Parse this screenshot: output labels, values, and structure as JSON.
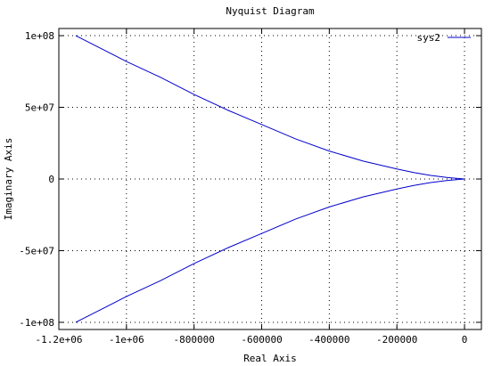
{
  "chart_data": {
    "type": "line",
    "title": "Nyquist Diagram",
    "xlabel": "Real Axis",
    "ylabel": "Imaginary Axis",
    "xlim": [
      -1200000,
      50000
    ],
    "ylim": [
      -105000000,
      105000000
    ],
    "grid": true,
    "legend_position": "top-right",
    "x_ticks": [
      {
        "value": -1200000,
        "label": "-1.2e+06"
      },
      {
        "value": -1000000,
        "label": "-1e+06"
      },
      {
        "value": -800000,
        "label": "-800000"
      },
      {
        "value": -600000,
        "label": "-600000"
      },
      {
        "value": -400000,
        "label": "-400000"
      },
      {
        "value": -200000,
        "label": "-200000"
      },
      {
        "value": 0,
        "label": "0"
      }
    ],
    "y_ticks": [
      {
        "value": 100000000,
        "label": "1e+08"
      },
      {
        "value": 50000000,
        "label": "5e+07"
      },
      {
        "value": 0,
        "label": "0"
      },
      {
        "value": -50000000,
        "label": "-5e+07"
      },
      {
        "value": -100000000,
        "label": "-1e+08"
      }
    ],
    "series": [
      {
        "name": "sys2",
        "color": "#0000cc",
        "points": [
          [
            -1150000,
            100000000
          ],
          [
            -1100000,
            94000000
          ],
          [
            -1000000,
            82000000
          ],
          [
            -900000,
            71000000
          ],
          [
            -800000,
            59000000
          ],
          [
            -700000,
            48000000
          ],
          [
            -600000,
            38000000
          ],
          [
            -500000,
            28000000
          ],
          [
            -400000,
            19500000
          ],
          [
            -300000,
            12500000
          ],
          [
            -200000,
            7000000
          ],
          [
            -150000,
            4500000
          ],
          [
            -100000,
            2500000
          ],
          [
            -50000,
            1000000
          ],
          [
            0,
            0
          ],
          [
            -50000,
            -1000000
          ],
          [
            -100000,
            -2500000
          ],
          [
            -150000,
            -4500000
          ],
          [
            -200000,
            -7000000
          ],
          [
            -300000,
            -12500000
          ],
          [
            -400000,
            -19500000
          ],
          [
            -500000,
            -28000000
          ],
          [
            -600000,
            -38000000
          ],
          [
            -700000,
            -48000000
          ],
          [
            -800000,
            -59000000
          ],
          [
            -900000,
            -71000000
          ],
          [
            -1000000,
            -82000000
          ],
          [
            -1100000,
            -94000000
          ],
          [
            -1150000,
            -100000000
          ]
        ]
      }
    ]
  }
}
